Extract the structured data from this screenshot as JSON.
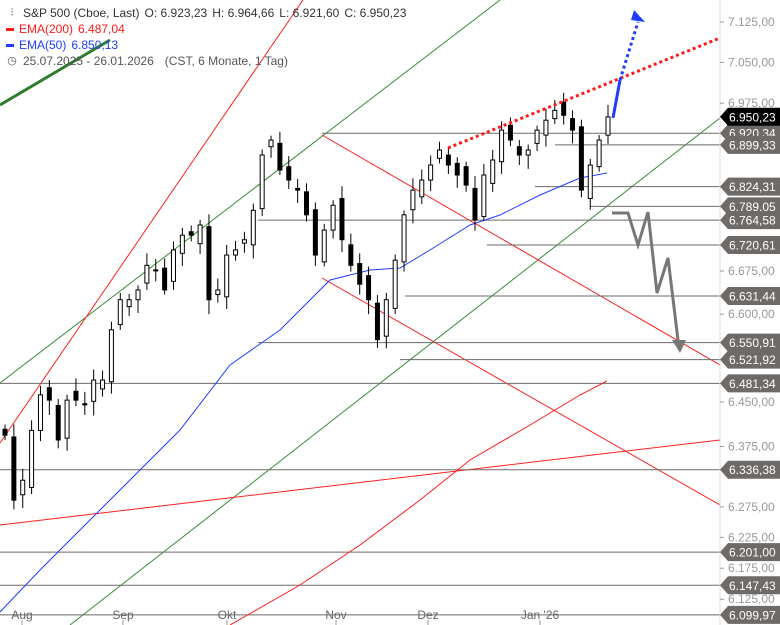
{
  "legend": {
    "title": "S&P 500 (Cboe, Last)",
    "open": "O: 6.923,23",
    "high": "H: 6.964,66",
    "low": "L: 6.921,60",
    "close": "C: 6.950,23",
    "ema200_label": "EMA(200)",
    "ema200_value": "6.487,04",
    "ema50_label": "EMA(50)",
    "ema50_value": "6.850,13",
    "range": "25.07.2025 - 26.01.2026",
    "info": "(CST, 6 Monate, 1 Tag)"
  },
  "colors": {
    "ema200": "#ff1a1a",
    "ema50": "#1f3dff",
    "up": "#ffffff",
    "down": "#000000",
    "level": "#6e6a68",
    "green": "#3a8a3a"
  },
  "chart_data": {
    "type": "candlestick",
    "scale": "log",
    "ylim": [
      6090,
      7180
    ],
    "y_ticks": [
      7125,
      7050,
      6975,
      6675,
      6600,
      6450,
      6375,
      6275,
      6225,
      6175,
      6125
    ],
    "y_tick_labels": [
      "7.125,00",
      "7.050,00",
      "6.975,00",
      "6.675,00",
      "6.600,00",
      "6.450,00",
      "6.375,00",
      "6.275,00",
      "6.225,00",
      "6.175,00",
      "6.125,00"
    ],
    "x_labels": [
      "Aug",
      "Sep",
      "Okt",
      "Nov",
      "Dez",
      "Jan '26"
    ],
    "closes": [
      6394,
      6286,
      6319,
      6402,
      6462,
      6453,
      6386,
      6453,
      6453,
      6445,
      6487,
      6487,
      6573,
      6625,
      6625,
      6642,
      6685,
      6677,
      6642,
      6712,
      6738,
      6738,
      6756,
      6625,
      6642,
      6703,
      6712,
      6730,
      6782,
      6881,
      6908,
      6854,
      6836,
      6818,
      6774,
      6703,
      6747,
      6791,
      6730,
      6685,
      6652,
      6625,
      6556,
      6625,
      6694,
      6774,
      6818,
      6836,
      6863,
      6890,
      6863,
      6845,
      6827,
      6765,
      6845,
      6872,
      6926,
      6908,
      6881,
      6890,
      6926,
      6944,
      6962,
      6953,
      6926,
      6818,
      6863,
      6908,
      6950
    ],
    "last_price": "6.950,23",
    "levels": [
      {
        "value": 6920.34,
        "label": "6.920,34"
      },
      {
        "value": 6899.33,
        "label": "6.899,33"
      },
      {
        "value": 6824.31,
        "label": "6.824,31"
      },
      {
        "value": 6789.05,
        "label": "6.789,05"
      },
      {
        "value": 6764.58,
        "label": "6.764,58"
      },
      {
        "value": 6720.61,
        "label": "6.720,61"
      },
      {
        "value": 6631.44,
        "label": "6.631,44"
      },
      {
        "value": 6550.91,
        "label": "6.550,91"
      },
      {
        "value": 6521.92,
        "label": "6.521,92"
      },
      {
        "value": 6481.34,
        "label": "6.481,34"
      },
      {
        "value": 6336.38,
        "label": "6.336,38"
      },
      {
        "value": 6201.0,
        "label": "6.201,00"
      },
      {
        "value": 6147.43,
        "label": "6.147,43"
      },
      {
        "value": 6099.97,
        "label": "6.099,97"
      }
    ]
  }
}
